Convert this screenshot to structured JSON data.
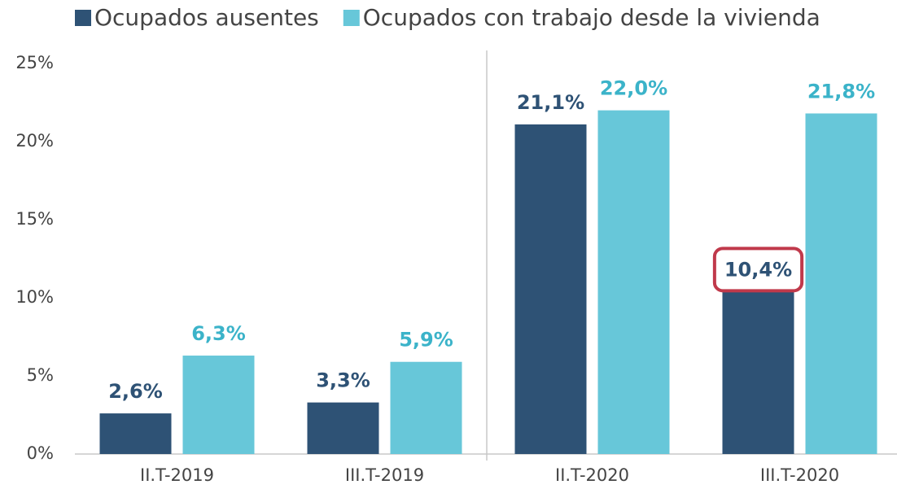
{
  "chart_data": {
    "type": "bar",
    "categories": [
      "II.T-2019",
      "III.T-2019",
      "II.T-2020",
      "III.T-2020"
    ],
    "series": [
      {
        "name": "Ocupados ausentes",
        "color": "#2e5275",
        "label_color": "#2e5275",
        "values": [
          2.6,
          3.3,
          21.1,
          10.4
        ],
        "value_labels": [
          "2,6%",
          "3,3%",
          "21,1%",
          "10,4%"
        ]
      },
      {
        "name": "Ocupados con trabajo desde la vivienda",
        "color": "#67c7d9",
        "label_color": "#3bb3c9",
        "values": [
          6.3,
          5.9,
          22.0,
          21.8
        ],
        "value_labels": [
          "6,3%",
          "5,9%",
          "22,0%",
          "21,8%"
        ]
      }
    ],
    "ylim": [
      0,
      25
    ],
    "yticks": [
      {
        "value": 0,
        "label": "0%"
      },
      {
        "value": 5,
        "label": "5%"
      },
      {
        "value": 10,
        "label": "10%"
      },
      {
        "value": 15,
        "label": "15%"
      },
      {
        "value": 20,
        "label": "20%"
      },
      {
        "value": 25,
        "label": "25%"
      }
    ],
    "grid": false,
    "legend": "top"
  }
}
